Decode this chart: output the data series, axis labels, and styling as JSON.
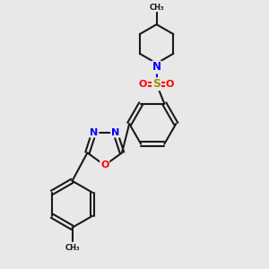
{
  "bg_color": "#e8e8e8",
  "bond_color": "#1a1a1a",
  "N_color": "#0000ff",
  "O_color": "#ff0000",
  "S_color": "#999900",
  "line_width": 1.5,
  "figsize": [
    3.0,
    3.0
  ],
  "dpi": 100,
  "xlim": [
    0,
    10
  ],
  "ylim": [
    0,
    10
  ]
}
